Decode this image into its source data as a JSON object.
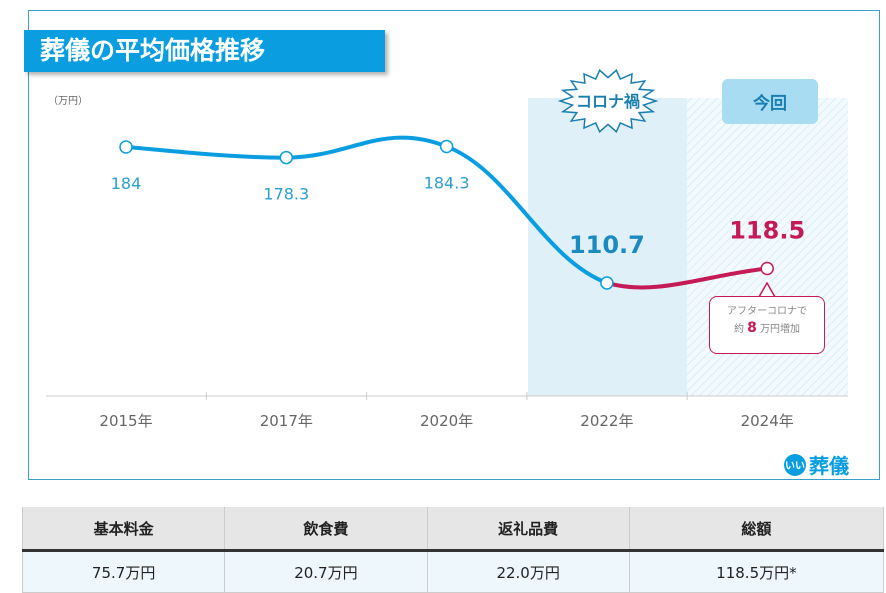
{
  "chart_data": {
    "type": "line",
    "title": "葬儀の平均価格推移",
    "ylabel": "（万円）",
    "categories": [
      "2015年",
      "2017年",
      "2020年",
      "2022年",
      "2024年"
    ],
    "values": [
      184,
      178.3,
      184.3,
      110.7,
      118.5
    ],
    "value_labels": [
      "184",
      "178.3",
      "184.3",
      "110.7",
      "118.5"
    ],
    "series_colors": {
      "main": "#0a9ee0",
      "after": "#c41a55"
    },
    "annotations": {
      "corona": "コロナ禍",
      "current": "今回",
      "callout_line1": "アフターコロナで",
      "callout_prefix": "約",
      "callout_num": "8",
      "callout_suffix": "万円増加"
    }
  },
  "logo": {
    "dots": "いい",
    "text": "葬儀"
  },
  "table": {
    "headers": [
      "基本料金",
      "飲食費",
      "返礼品費",
      "総額"
    ],
    "values": [
      "75.7万円",
      "20.7万円",
      "22.0万円",
      "118.5万円*"
    ]
  }
}
